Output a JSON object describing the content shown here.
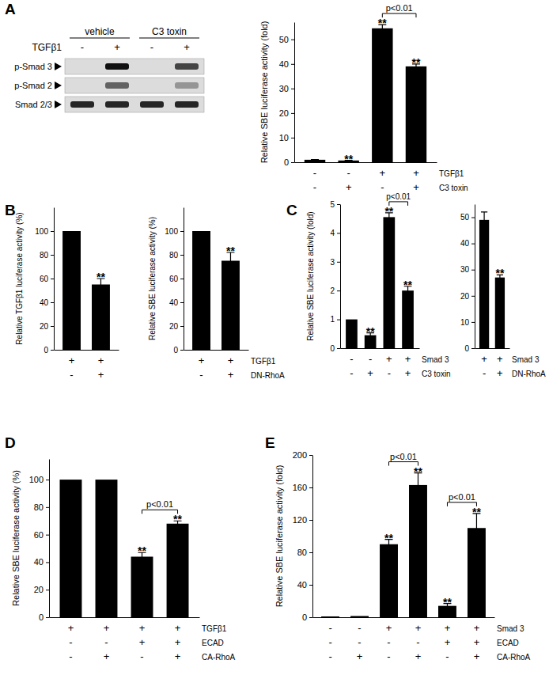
{
  "chart_data": [
    {
      "type": "blot",
      "panel": "A",
      "treatment_label": "TGFβ1",
      "groups": [
        {
          "label": "vehicle",
          "treatment": [
            "-",
            "+"
          ]
        },
        {
          "label": "C3 toxin",
          "treatment": [
            "-",
            "+"
          ]
        }
      ],
      "rows": [
        {
          "label": "p-Smad 3",
          "intensity": [
            0,
            1,
            0,
            0.75
          ]
        },
        {
          "label": "p-Smad 2",
          "intensity": [
            0,
            0.6,
            0,
            0.35
          ]
        },
        {
          "label": "Smad 2/3",
          "intensity": [
            0.9,
            0.9,
            0.9,
            0.9
          ]
        }
      ]
    },
    {
      "type": "bar",
      "y_label": "Relative SBE luciferase activity (fold)",
      "categories": [
        null,
        null,
        null,
        null
      ],
      "values": [
        1,
        0.7,
        54.5,
        39
      ],
      "errors": [
        0.1,
        0.05,
        1.5,
        1
      ],
      "significance": [
        null,
        "**",
        "**",
        "**"
      ],
      "comparisons": [
        {
          "from": 2,
          "to": 3,
          "label": "p<0.01"
        }
      ],
      "conditions": [
        {
          "name": "TGFβ1",
          "values": [
            "-",
            "-",
            "+",
            "+"
          ]
        },
        {
          "name": "C3 toxin",
          "values": [
            "-",
            "+",
            "-",
            "+"
          ]
        }
      ],
      "color": "#000000",
      "ylim": [
        0,
        57
      ],
      "yticks": [
        0,
        10,
        20,
        30,
        40,
        50
      ]
    },
    {
      "type": "bar",
      "panel": "B",
      "y_label": "Relative TGFβ1 luciferase activity (%)",
      "categories": [
        null,
        null
      ],
      "values": [
        100,
        55
      ],
      "errors": [
        null,
        5
      ],
      "significance": [
        null,
        "**"
      ],
      "conditions": [
        {
          "values": [
            "+",
            "+"
          ]
        },
        {
          "values": [
            "-",
            "+"
          ]
        }
      ],
      "color": "#000000",
      "ylim": [
        0,
        120
      ],
      "yticks": [
        0,
        20,
        40,
        60,
        80,
        100
      ]
    },
    {
      "type": "bar",
      "y_label": "Relative SBE luciferase activity (%)",
      "categories": [
        null,
        null
      ],
      "values": [
        100,
        75
      ],
      "errors": [
        null,
        7
      ],
      "significance": [
        null,
        "**"
      ],
      "conditions": [
        {
          "name": "TGFβ1",
          "values": [
            "+",
            "+"
          ]
        },
        {
          "name": "DN-RhoA",
          "values": [
            "-",
            "+"
          ]
        }
      ],
      "color": "#000000",
      "ylim": [
        0,
        120
      ],
      "yticks": [
        0,
        20,
        40,
        60,
        80,
        100
      ]
    },
    {
      "type": "bar",
      "panel": "C",
      "y_label": "Relative SBE luciferase activity (fold)",
      "categories": [
        null,
        null,
        null,
        null
      ],
      "values": [
        1,
        0.45,
        4.55,
        2.0
      ],
      "errors": [
        null,
        0.08,
        0.15,
        0.15
      ],
      "significance": [
        null,
        "**",
        "**",
        "**"
      ],
      "comparisons": [
        {
          "from": 2,
          "to": 3,
          "label": "p<0.01"
        }
      ],
      "conditions": [
        {
          "name": "Smad 3",
          "values": [
            "-",
            "-",
            "+",
            "+"
          ]
        },
        {
          "name": "C3 toxin",
          "values": [
            "-",
            "+",
            "-",
            "+"
          ]
        }
      ],
      "color": "#000000",
      "ylim": [
        0,
        5
      ],
      "yticks": [
        0,
        1,
        2,
        3,
        4,
        5
      ]
    },
    {
      "type": "bar",
      "categories": [
        null,
        null
      ],
      "values": [
        49,
        27
      ],
      "errors": [
        3,
        1
      ],
      "significance": [
        null,
        "**"
      ],
      "conditions": [
        {
          "name": "Smad 3",
          "values": [
            "+",
            "+"
          ]
        },
        {
          "name": "DN-RhoA",
          "values": [
            "-",
            "+"
          ]
        }
      ],
      "color": "#000000",
      "ylim": [
        0,
        55
      ],
      "yticks": [
        0,
        10,
        20,
        30,
        40,
        50
      ]
    },
    {
      "type": "bar",
      "panel": "D",
      "y_label": "Relative SBE luciferase activity (%)",
      "categories": [
        null,
        null,
        null,
        null
      ],
      "values": [
        100,
        100,
        44,
        68
      ],
      "errors": [
        null,
        null,
        3,
        2
      ],
      "significance": [
        null,
        null,
        "**",
        "**"
      ],
      "comparisons": [
        {
          "from": 2,
          "to": 3,
          "label": "p<0.01"
        }
      ],
      "conditions": [
        {
          "name": "TGFβ1",
          "values": [
            "+",
            "+",
            "+",
            "+"
          ]
        },
        {
          "name": "ECAD",
          "values": [
            "-",
            "-",
            "+",
            "+"
          ]
        },
        {
          "name": "CA-RhoA",
          "values": [
            "-",
            "+",
            "-",
            "+"
          ]
        }
      ],
      "color": "#000000",
      "ylim": [
        0,
        115
      ],
      "yticks": [
        0,
        20,
        40,
        60,
        80,
        100
      ]
    },
    {
      "type": "bar",
      "panel": "E",
      "y_label": "Relative SBE luciferase activity (fold)",
      "categories": [
        null,
        null,
        null,
        null,
        null,
        null
      ],
      "values": [
        1,
        1.5,
        90,
        163,
        14,
        110
      ],
      "errors": [
        null,
        null,
        6,
        15,
        3,
        18
      ],
      "significance": [
        null,
        null,
        "**",
        "**",
        "**",
        "**"
      ],
      "comparisons": [
        {
          "from": 2,
          "to": 3,
          "label": "p<0.01"
        },
        {
          "from": 4,
          "to": 5,
          "label": "p<0.01"
        }
      ],
      "conditions": [
        {
          "name": "Smad 3",
          "values": [
            "-",
            "-",
            "+",
            "+",
            "+",
            "+"
          ]
        },
        {
          "name": "ECAD",
          "values": [
            "-",
            "-",
            "-",
            "-",
            "+",
            "+"
          ]
        },
        {
          "name": "CA-RhoA",
          "values": [
            "-",
            "+",
            "-",
            "+",
            "-",
            "+"
          ]
        }
      ],
      "color": "#000000",
      "ylim": [
        0,
        200
      ],
      "yticks": [
        0,
        40,
        80,
        120,
        160,
        200
      ]
    }
  ]
}
